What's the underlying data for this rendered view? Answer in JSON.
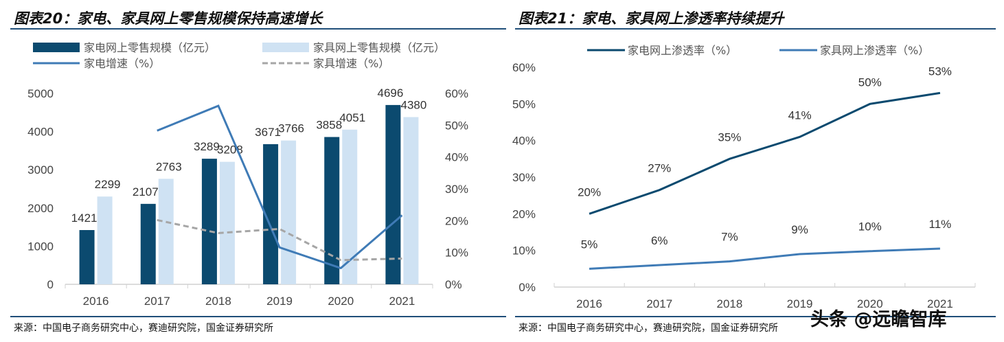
{
  "colors": {
    "home_appliance": "#0b4a6f",
    "furniture": "#cfe2f3",
    "appliance_growth": "#3f7bb6",
    "furniture_growth": "#a6a6a6",
    "rule": "#1f4e79"
  },
  "watermark": "头条 @远瞻智库",
  "chart_data": [
    {
      "type": "bar",
      "title": "图表20：家电、家具网上零售规模保持高速增长",
      "source": "来源：中国电子商务研究中心，赛迪研究院，国金证券研究所",
      "categories": [
        "2016",
        "2017",
        "2018",
        "2019",
        "2020",
        "2021"
      ],
      "ylim": [
        0,
        5000
      ],
      "yticks": [
        "0",
        "1000",
        "2000",
        "3000",
        "4000",
        "5000"
      ],
      "y2lim": [
        0,
        60
      ],
      "y2ticks": [
        "0%",
        "10%",
        "20%",
        "30%",
        "40%",
        "50%",
        "60%"
      ],
      "series": [
        {
          "name": "家电网上零售规模（亿元）",
          "kind": "bar",
          "values": [
            1421,
            2107,
            3289,
            3671,
            3858,
            4696
          ]
        },
        {
          "name": "家具网上零售规模（亿元）",
          "kind": "bar",
          "values": [
            2299,
            2763,
            3208,
            3766,
            4051,
            4380
          ]
        },
        {
          "name": "家电增速（%）",
          "kind": "line",
          "axis": "right",
          "values": [
            null,
            48.3,
            56.1,
            11.6,
            5.1,
            21.7
          ]
        },
        {
          "name": "家具增速（%）",
          "kind": "line",
          "axis": "right",
          "dashed": true,
          "values": [
            null,
            20.2,
            16.1,
            17.4,
            7.6,
            8.1
          ]
        }
      ],
      "legend": "top"
    },
    {
      "type": "line",
      "title": "图表21：家电、家具网上渗透率持续提升",
      "source": "来源：中国电子商务研究中心，赛迪研究院，国金证券研究所",
      "categories": [
        "2016",
        "2017",
        "2018",
        "2019",
        "2020",
        "2021"
      ],
      "ylim": [
        0,
        60
      ],
      "yticks": [
        "0%",
        "10%",
        "20%",
        "30%",
        "40%",
        "50%",
        "60%"
      ],
      "series": [
        {
          "name": "家电网上渗透率（%）",
          "values": [
            20,
            26.5,
            35,
            41,
            50,
            53
          ],
          "labels": [
            "20%",
            "27%",
            "35%",
            "41%",
            "50%",
            "53%"
          ]
        },
        {
          "name": "家具网上渗透率（%）",
          "values": [
            5,
            6,
            7,
            9,
            9.8,
            10.5
          ],
          "labels": [
            "5%",
            "6%",
            "7%",
            "9%",
            "10%",
            "11%"
          ]
        }
      ],
      "legend": "top"
    }
  ]
}
